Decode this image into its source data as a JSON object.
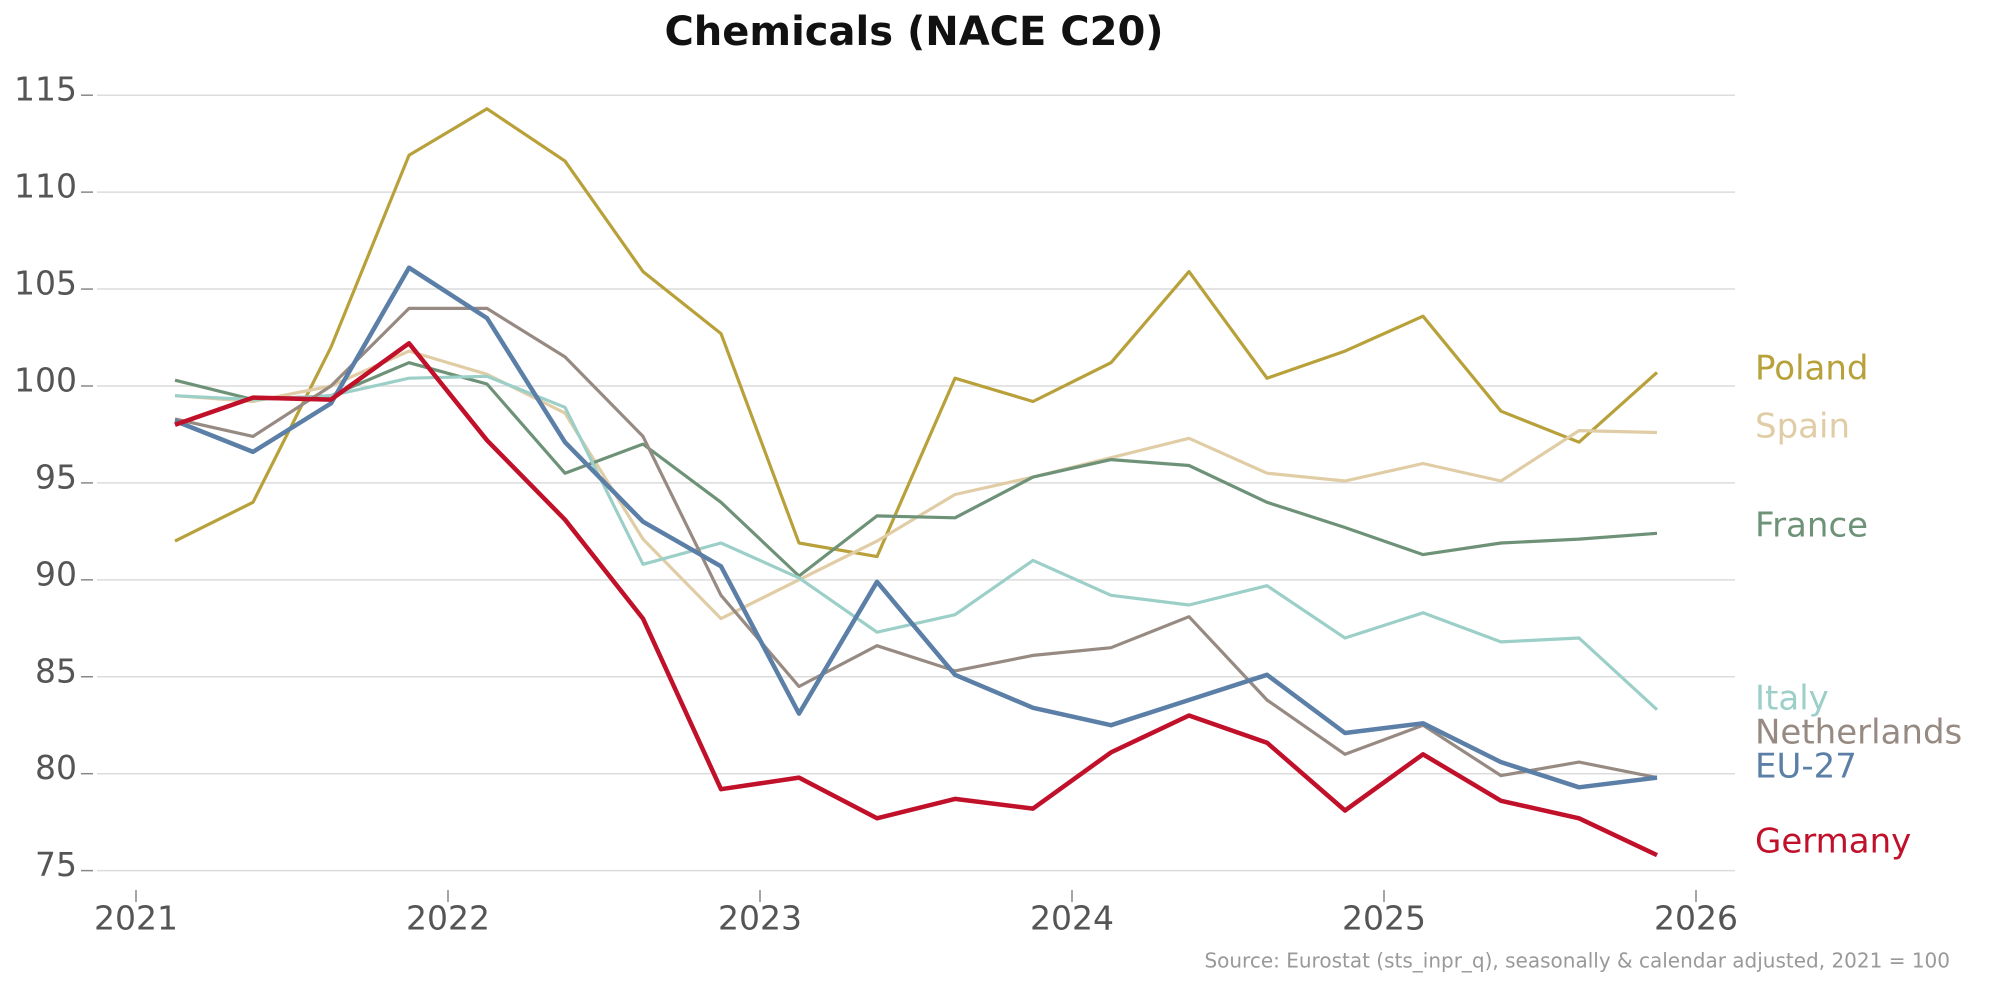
{
  "chart_data": {
    "type": "line",
    "title": "Chemicals (NACE C20)",
    "source": "Source: Eurostat (sts_inpr_q), seasonally & calendar adjusted, 2021 = 100",
    "x": [
      2021.125,
      2021.375,
      2021.625,
      2021.875,
      2022.125,
      2022.375,
      2022.625,
      2022.875,
      2023.125,
      2023.375,
      2023.625,
      2023.875,
      2024.125,
      2024.375,
      2024.625,
      2024.875,
      2025.125,
      2025.375,
      2025.625,
      2025.875
    ],
    "xlim": [
      2020.875,
      2026.125
    ],
    "xticks": [
      2021,
      2022,
      2023,
      2024,
      2025,
      2026
    ],
    "ylim": [
      74,
      116.3
    ],
    "yticks": [
      75,
      80,
      85,
      90,
      95,
      100,
      105,
      110,
      115
    ],
    "grid": true,
    "series": [
      {
        "name": "Poland",
        "color": "#b8a13a",
        "values": [
          92.0,
          94.0,
          102.0,
          111.9,
          114.3,
          111.6,
          105.9,
          102.7,
          91.9,
          91.2,
          100.4,
          99.2,
          101.2,
          105.9,
          100.4,
          101.8,
          103.6,
          98.7,
          97.1,
          100.7
        ]
      },
      {
        "name": "Spain",
        "color": "#e0cda6",
        "values": [
          99.5,
          99.2,
          100.0,
          101.8,
          100.6,
          98.6,
          92.1,
          88.0,
          90.0,
          92.0,
          94.4,
          95.3,
          96.3,
          97.3,
          95.5,
          95.1,
          96.0,
          95.1,
          97.7,
          97.6
        ]
      },
      {
        "name": "France",
        "color": "#6e9278",
        "values": [
          100.3,
          99.3,
          99.5,
          101.2,
          100.1,
          95.5,
          97.0,
          94.0,
          90.2,
          93.3,
          93.2,
          95.3,
          96.2,
          95.9,
          94.0,
          92.7,
          91.3,
          91.9,
          92.1,
          92.4
        ]
      },
      {
        "name": "Italy",
        "color": "#9ccfc8",
        "values": [
          99.5,
          99.3,
          99.5,
          100.4,
          100.5,
          98.9,
          90.8,
          91.9,
          90.1,
          87.3,
          88.2,
          91.0,
          89.2,
          88.7,
          89.7,
          87.0,
          88.3,
          86.8,
          87.0,
          83.3
        ]
      },
      {
        "name": "Netherlands",
        "color": "#978a82",
        "values": [
          98.3,
          97.4,
          100.0,
          104.0,
          104.0,
          101.5,
          97.4,
          89.2,
          84.5,
          86.6,
          85.3,
          86.1,
          86.5,
          88.1,
          83.8,
          81.0,
          82.5,
          79.9,
          80.6,
          79.8
        ]
      },
      {
        "name": "EU-27",
        "color": "#5b7fa6",
        "values": [
          98.2,
          96.6,
          99.1,
          106.1,
          103.5,
          97.1,
          93.0,
          90.7,
          83.1,
          89.9,
          85.1,
          83.4,
          82.5,
          83.8,
          85.1,
          82.1,
          82.6,
          80.6,
          79.3,
          79.8
        ]
      },
      {
        "name": "Germany",
        "color": "#c0102a",
        "values": [
          98.0,
          99.4,
          99.3,
          102.2,
          97.2,
          93.1,
          88.0,
          79.2,
          79.8,
          77.7,
          78.7,
          78.2,
          81.1,
          83.0,
          81.6,
          78.1,
          81.0,
          78.6,
          77.7,
          75.8
        ]
      }
    ]
  }
}
